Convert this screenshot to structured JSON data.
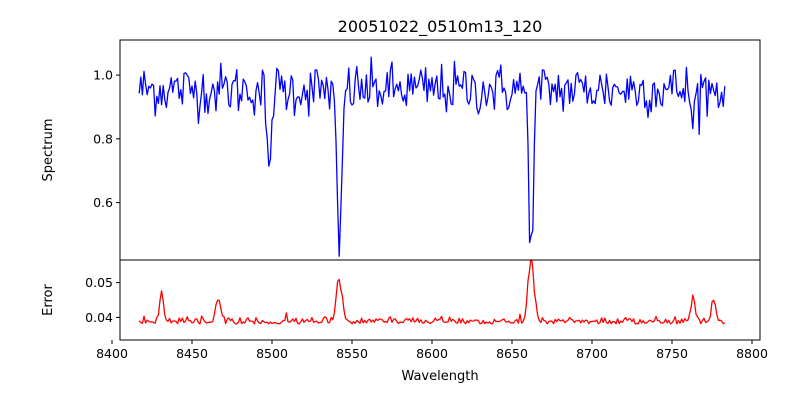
{
  "chart_data": [
    {
      "type": "line",
      "title": "20051022_0510m13_120",
      "ylabel": "Spectrum",
      "xlabel": "",
      "xlim": [
        8405,
        8805
      ],
      "ylim": [
        0.42,
        1.11
      ],
      "yticks": [
        0.6,
        0.8,
        1.0
      ],
      "ytick_labels": [
        "0.6",
        "0.8",
        "1.0"
      ],
      "color": "#0000ff",
      "x_range": [
        8417,
        8783
      ],
      "step": 1,
      "continuum": 0.955,
      "noise": 0.045,
      "lines": [
        {
          "center": 8498,
          "depth": 0.3,
          "width": 1.2
        },
        {
          "center": 8542,
          "depth": 0.52,
          "width": 1.5
        },
        {
          "center": 8662,
          "depth": 0.5,
          "width": 1.4
        },
        {
          "center": 8763,
          "depth": 0.12,
          "width": 1.0
        }
      ]
    },
    {
      "type": "line",
      "title": "",
      "ylabel": "Error",
      "xlabel": "Wavelength",
      "xlim": [
        8405,
        8805
      ],
      "ylim": [
        0.0335,
        0.0565
      ],
      "yticks": [
        0.04,
        0.05
      ],
      "ytick_labels": [
        "0.04",
        "0.05"
      ],
      "xticks": [
        8400,
        8450,
        8500,
        8550,
        8600,
        8650,
        8700,
        8750,
        8800
      ],
      "xtick_labels": [
        "8400",
        "8450",
        "8500",
        "8550",
        "8600",
        "8650",
        "8700",
        "8750",
        "8800"
      ],
      "color": "#ff0000",
      "x_range": [
        8417,
        8783
      ],
      "step": 1,
      "baseline": 0.0385,
      "noise": 0.0012,
      "peaks": [
        {
          "center": 8431,
          "height": 0.008,
          "width": 1.2
        },
        {
          "center": 8466,
          "height": 0.007,
          "width": 1.2
        },
        {
          "center": 8542,
          "height": 0.012,
          "width": 1.8
        },
        {
          "center": 8662,
          "height": 0.016,
          "width": 2.0
        },
        {
          "center": 8763,
          "height": 0.007,
          "width": 1.5
        },
        {
          "center": 8776,
          "height": 0.006,
          "width": 1.5
        }
      ]
    }
  ]
}
